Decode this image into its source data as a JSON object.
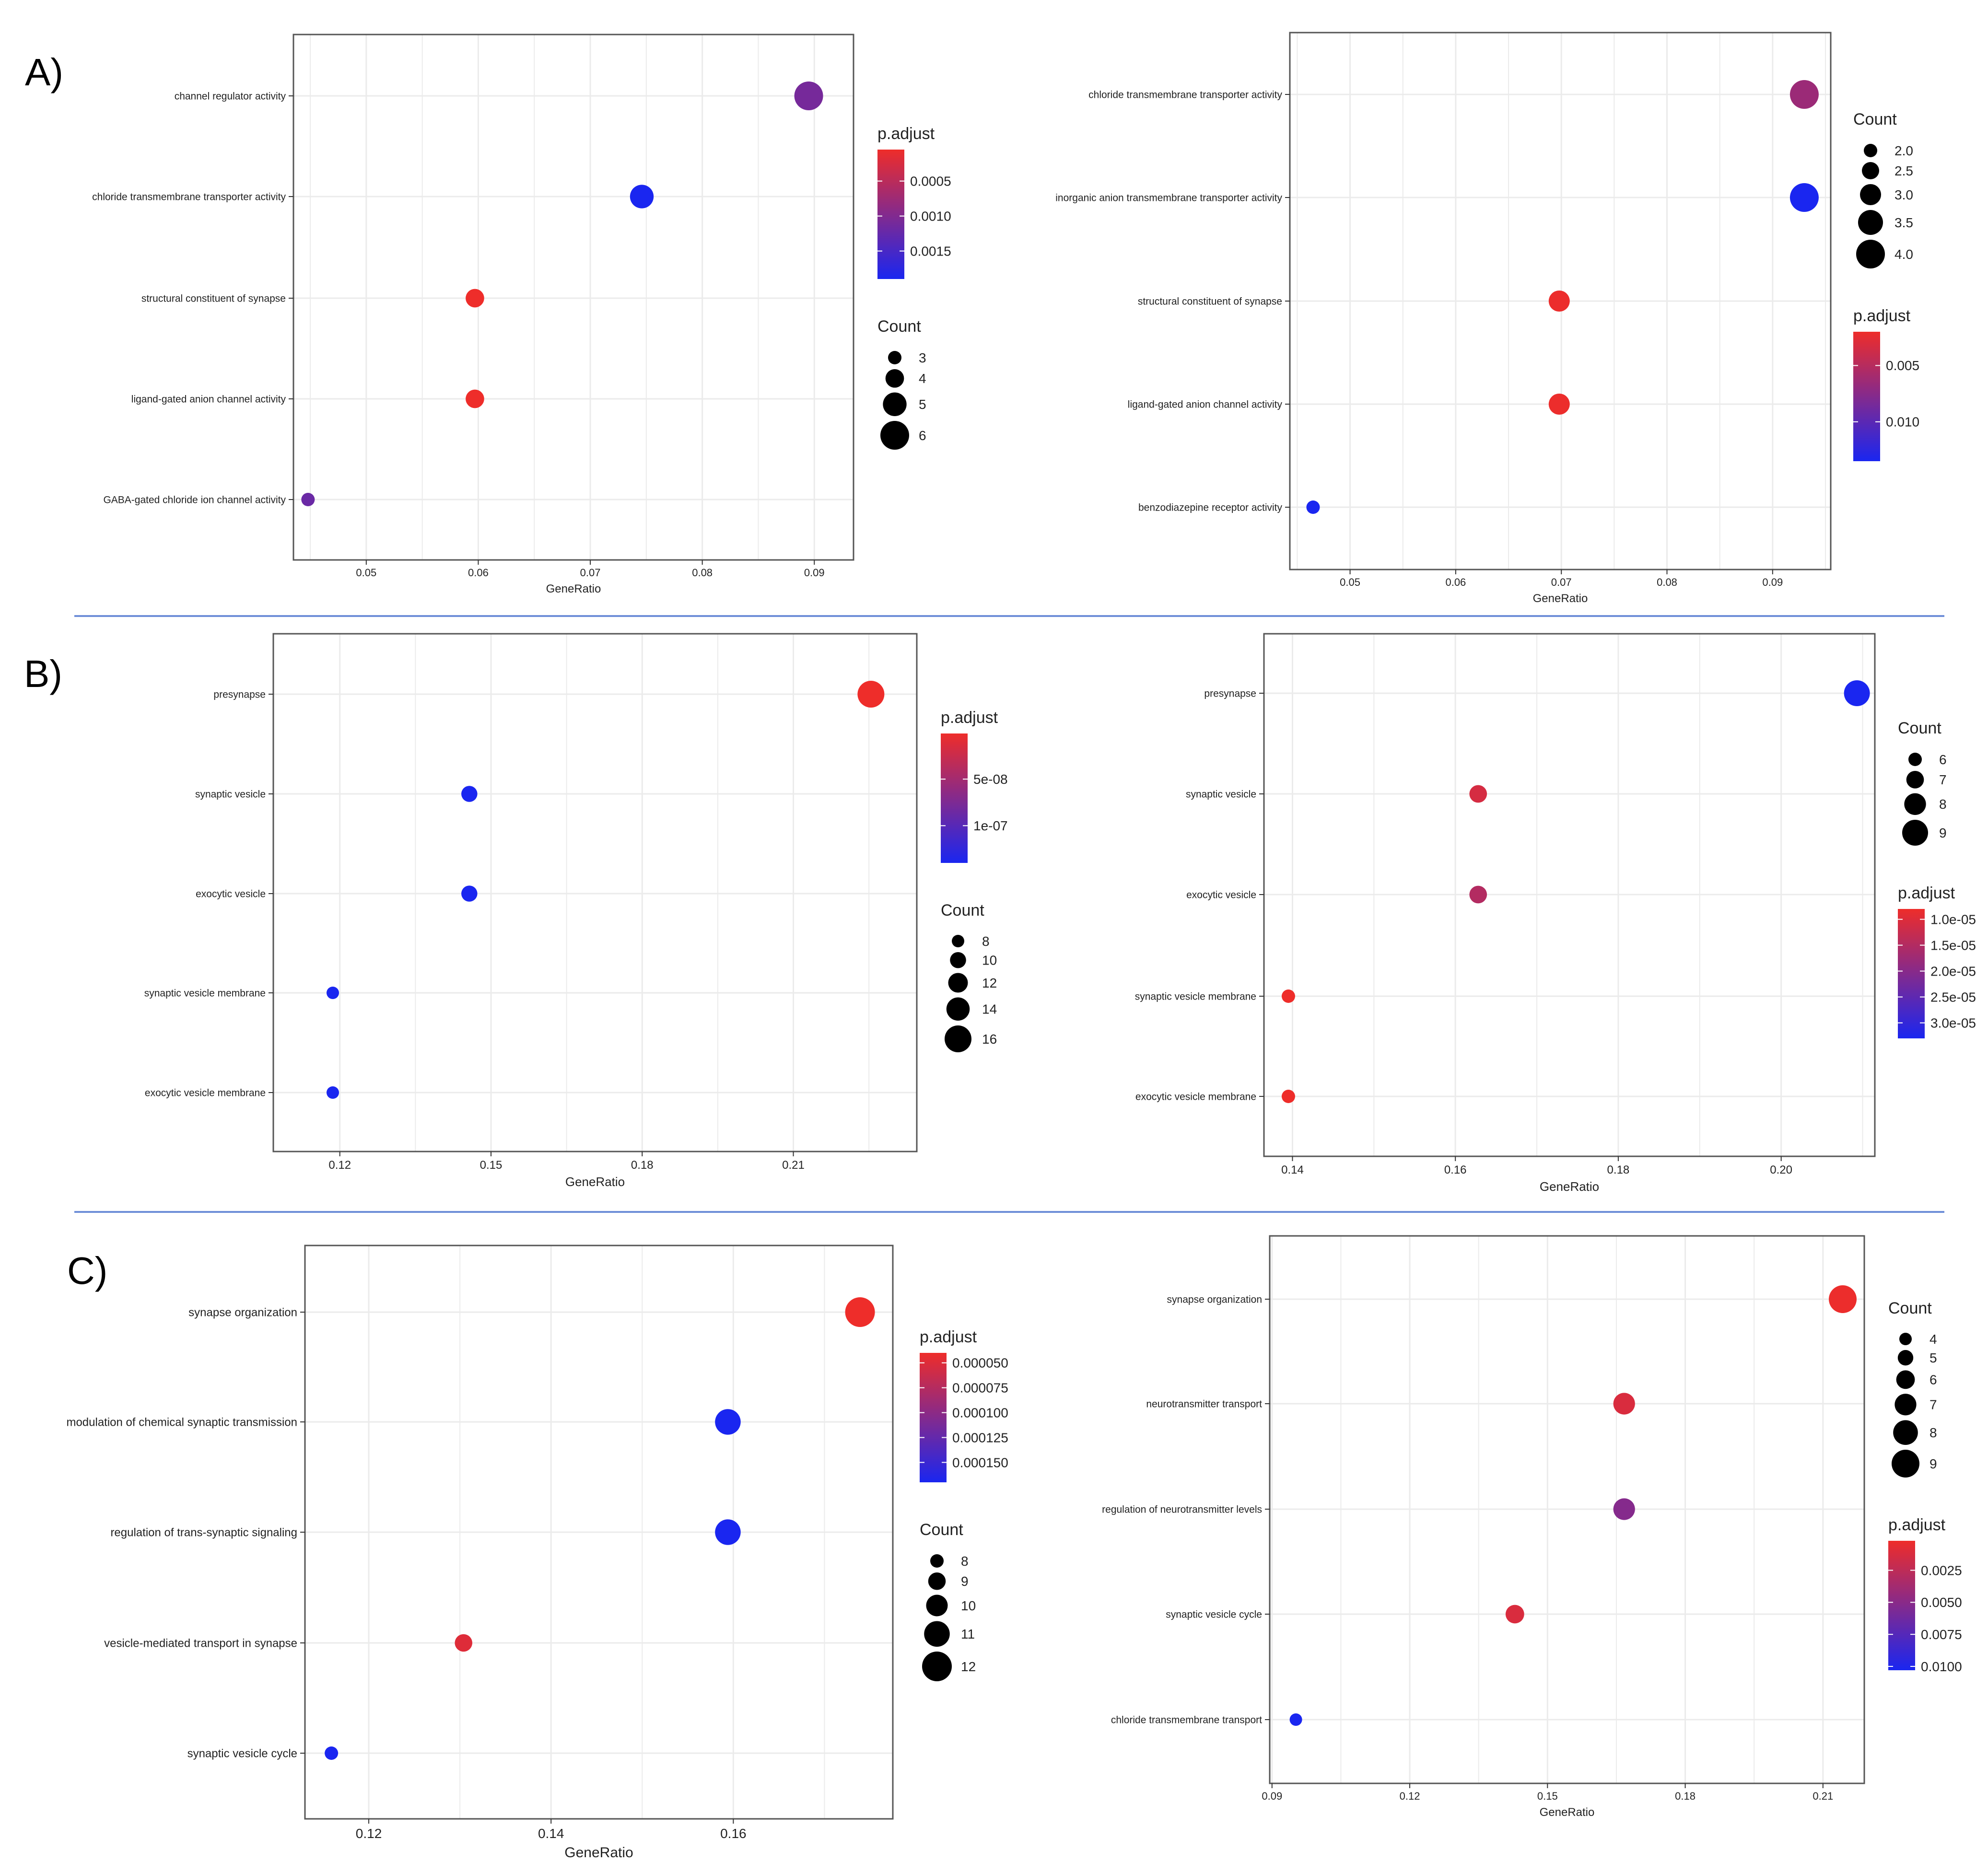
{
  "panel_labels": [
    "A)",
    "B)",
    "C)"
  ],
  "colors": {
    "low_p": "#ee2d2a",
    "high_p": "#1a26f0",
    "grid": "#ebebeb",
    "frame": "#555555",
    "divider": "#6f8fd8"
  },
  "chart_data": [
    {
      "type": "scatter",
      "panel": "A-left",
      "title": "",
      "xlabel": "GeneRatio",
      "ylabel": "",
      "xlim": [
        0.0435,
        0.0935
      ],
      "xticks": [
        0.05,
        0.06,
        0.07,
        0.08,
        0.09
      ],
      "tick_decimals": 2,
      "grid": true,
      "categories": [
        "channel regulator activity",
        "chloride transmembrane transporter activity",
        "structural constituent of synapse",
        "ligand-gated anion channel activity",
        "GABA-gated chloride ion channel activity"
      ],
      "x": [
        0.0895,
        0.0746,
        0.0597,
        0.0597,
        0.0448
      ],
      "count": [
        6,
        5,
        4,
        4,
        3
      ],
      "p_adjust": [
        0.0011,
        0.0019,
        5e-05,
        5e-05,
        0.0012
      ],
      "legend_order": [
        "color",
        "size"
      ],
      "color_legend": {
        "title": "p.adjust",
        "range": [
          5e-05,
          0.0019
        ],
        "ticks": [
          0.0005,
          0.001,
          0.0015
        ],
        "tick_labels": [
          "0.0005",
          "0.0010",
          "0.0015"
        ]
      },
      "size_legend": {
        "title": "Count",
        "values": [
          3,
          4,
          5,
          6
        ],
        "labels": [
          "3",
          "4",
          "5",
          "6"
        ]
      }
    },
    {
      "type": "scatter",
      "panel": "A-right",
      "title": "",
      "xlabel": "GeneRatio",
      "ylabel": "",
      "xlim": [
        0.0443,
        0.0955
      ],
      "xticks": [
        0.05,
        0.06,
        0.07,
        0.08,
        0.09
      ],
      "tick_decimals": 2,
      "grid": true,
      "categories": [
        "chloride transmembrane transporter activity",
        "inorganic anion transmembrane transporter activity",
        "structural constituent of synapse",
        "ligand-gated anion channel activity",
        "benzodiazepine receptor activity"
      ],
      "x": [
        0.093,
        0.093,
        0.0698,
        0.0698,
        0.0465
      ],
      "count": [
        4,
        4,
        3,
        3,
        2
      ],
      "p_adjust": [
        0.0065,
        0.0135,
        0.0021,
        0.0021,
        0.0135
      ],
      "legend_order": [
        "size",
        "color"
      ],
      "size_legend": {
        "title": "Count",
        "values": [
          2,
          2.5,
          3,
          3.5,
          4
        ],
        "labels": [
          "2.0",
          "2.5",
          "3.0",
          "3.5",
          "4.0"
        ]
      },
      "color_legend": {
        "title": "p.adjust",
        "range": [
          0.002,
          0.0135
        ],
        "ticks": [
          0.005,
          0.01
        ],
        "tick_labels": [
          "0.005",
          "0.010"
        ]
      }
    },
    {
      "type": "scatter",
      "panel": "B-left",
      "title": "",
      "xlabel": "GeneRatio",
      "ylabel": "",
      "xlim": [
        0.1068,
        0.2345
      ],
      "xticks": [
        0.12,
        0.15,
        0.18,
        0.21
      ],
      "tick_decimals": 2,
      "grid": true,
      "categories": [
        "presynapse",
        "synaptic vesicle",
        "exocytic vesicle",
        "synaptic vesicle membrane",
        "exocytic vesicle membrane"
      ],
      "x": [
        0.2254,
        0.1457,
        0.1457,
        0.1186,
        0.1186
      ],
      "count": [
        16,
        10,
        10,
        8,
        8
      ],
      "p_adjust": [
        1e-09,
        1.4e-07,
        1.4e-07,
        1.4e-07,
        1.4e-07
      ],
      "legend_order": [
        "color",
        "size"
      ],
      "color_legend": {
        "title": "p.adjust",
        "range": [
          1e-09,
          1.4e-07
        ],
        "ticks": [
          5e-08,
          1e-07
        ],
        "tick_labels": [
          "5e-08",
          "1e-07"
        ]
      },
      "size_legend": {
        "title": "Count",
        "values": [
          8,
          10,
          12,
          14,
          16
        ],
        "labels": [
          "8",
          "10",
          "12",
          "14",
          "16"
        ]
      }
    },
    {
      "type": "scatter",
      "panel": "B-right",
      "title": "",
      "xlabel": "GeneRatio",
      "ylabel": "",
      "xlim": [
        0.1365,
        0.2115
      ],
      "xticks": [
        0.14,
        0.16,
        0.18,
        0.2
      ],
      "tick_decimals": 2,
      "grid": true,
      "categories": [
        "presynapse",
        "synaptic vesicle",
        "exocytic vesicle",
        "synaptic vesicle membrane",
        "exocytic vesicle membrane"
      ],
      "x": [
        0.2093,
        0.1628,
        0.1628,
        0.1395,
        0.1395
      ],
      "count": [
        9,
        7,
        7,
        6,
        6
      ],
      "p_adjust": [
        3.3e-05,
        1.1e-05,
        1.5e-05,
        8e-06,
        8e-06
      ],
      "legend_order": [
        "size",
        "color"
      ],
      "size_legend": {
        "title": "Count",
        "values": [
          6,
          7,
          8,
          9
        ],
        "labels": [
          "6",
          "7",
          "8",
          "9"
        ]
      },
      "color_legend": {
        "title": "p.adjust",
        "range": [
          8e-06,
          3.3e-05
        ],
        "ticks": [
          1e-05,
          1.5e-05,
          2e-05,
          2.5e-05,
          3e-05
        ],
        "tick_labels": [
          "1.0e-05",
          "1.5e-05",
          "2.0e-05",
          "2.5e-05",
          "3.0e-05"
        ]
      }
    },
    {
      "type": "scatter",
      "panel": "C-left",
      "title": "",
      "xlabel": "GeneRatio",
      "ylabel": "",
      "xlim": [
        0.113,
        0.1775
      ],
      "xticks": [
        0.12,
        0.14,
        0.16
      ],
      "tick_decimals": 2,
      "grid": true,
      "categories": [
        "synapse organization",
        "modulation of chemical synaptic transmission",
        "regulation of trans-synaptic signaling",
        "vesicle-mediated transport in synapse",
        "synaptic vesicle cycle"
      ],
      "x": [
        0.1739,
        0.1594,
        0.1594,
        0.1304,
        0.1159
      ],
      "count": [
        12,
        11,
        11,
        9,
        8
      ],
      "p_adjust": [
        4e-05,
        0.00017,
        0.00017,
        5e-05,
        0.00017
      ],
      "legend_order": [
        "color",
        "size"
      ],
      "color_legend": {
        "title": "p.adjust",
        "range": [
          4e-05,
          0.00017
        ],
        "ticks": [
          5e-05,
          7.5e-05,
          0.0001,
          0.000125,
          0.00015
        ],
        "tick_labels": [
          "0.000050",
          "0.000075",
          "0.000100",
          "0.000125",
          "0.000150"
        ]
      },
      "size_legend": {
        "title": "Count",
        "values": [
          8,
          9,
          10,
          11,
          12
        ],
        "labels": [
          "8",
          "9",
          "10",
          "11",
          "12"
        ]
      }
    },
    {
      "type": "scatter",
      "panel": "C-right",
      "title": "",
      "xlabel": "GeneRatio",
      "ylabel": "",
      "xlim": [
        0.0895,
        0.219
      ],
      "xticks": [
        0.09,
        0.12,
        0.15,
        0.18,
        0.21
      ],
      "tick_decimals": 2,
      "grid": true,
      "categories": [
        "synapse organization",
        "neurotransmitter transport",
        "regulation of neurotransmitter levels",
        "synaptic vesicle cycle",
        "chloride transmembrane transport"
      ],
      "x": [
        0.2143,
        0.1667,
        0.1667,
        0.1429,
        0.0952
      ],
      "count": [
        9,
        7,
        7,
        6,
        4
      ],
      "p_adjust": [
        0.0003,
        0.0012,
        0.0052,
        0.0012,
        0.0105
      ],
      "legend_order": [
        "size",
        "color"
      ],
      "size_legend": {
        "title": "Count",
        "values": [
          4,
          5,
          6,
          7,
          8,
          9
        ],
        "labels": [
          "4",
          "5",
          "6",
          "7",
          "8",
          "9"
        ]
      },
      "color_legend": {
        "title": "p.adjust",
        "range": [
          0.0002,
          0.0103
        ],
        "ticks": [
          0.0025,
          0.005,
          0.0075,
          0.01
        ],
        "tick_labels": [
          "0.0025",
          "0.0050",
          "0.0075",
          "0.0100"
        ]
      }
    }
  ]
}
